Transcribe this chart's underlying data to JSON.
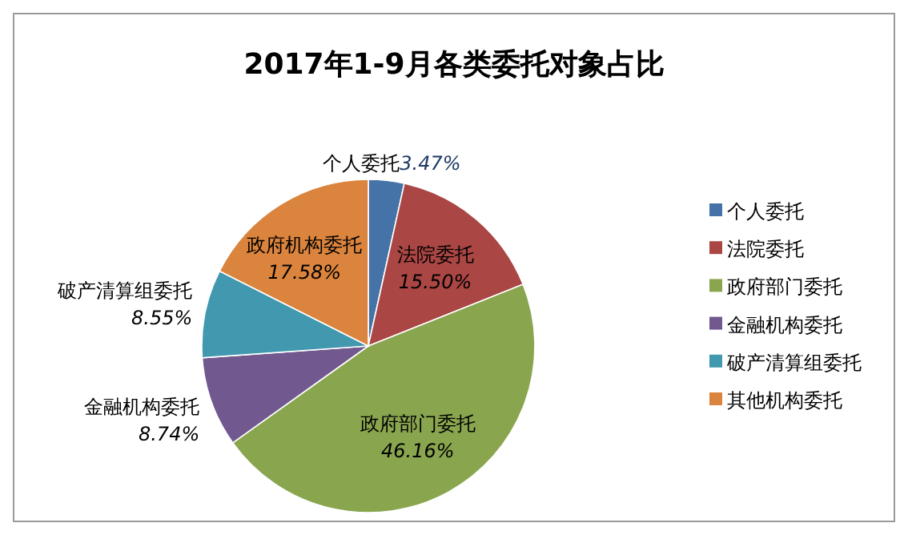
{
  "chart_data": {
    "type": "pie",
    "title": "2017年1-9月各类委托对象占比",
    "categories": [
      "个人委托",
      "法院委托",
      "政府部门委托",
      "金融机构委托",
      "破产清算组委托",
      "其他机构委托"
    ],
    "values": [
      3.47,
      15.5,
      46.16,
      8.74,
      8.55,
      17.58
    ],
    "colors": [
      "#4572a7",
      "#aa4643",
      "#89a54e",
      "#71588f",
      "#4198af",
      "#db843d"
    ],
    "value_labels": [
      "3.47%",
      "15.50%",
      "46.16%",
      "8.74%",
      "8.55%",
      "17.58%"
    ],
    "annotations": [
      "个人委托",
      "法院委托",
      "政府部门委托",
      "金融机构委托",
      "破产清算组委托",
      "政府机构委托"
    ],
    "legend": "right"
  }
}
